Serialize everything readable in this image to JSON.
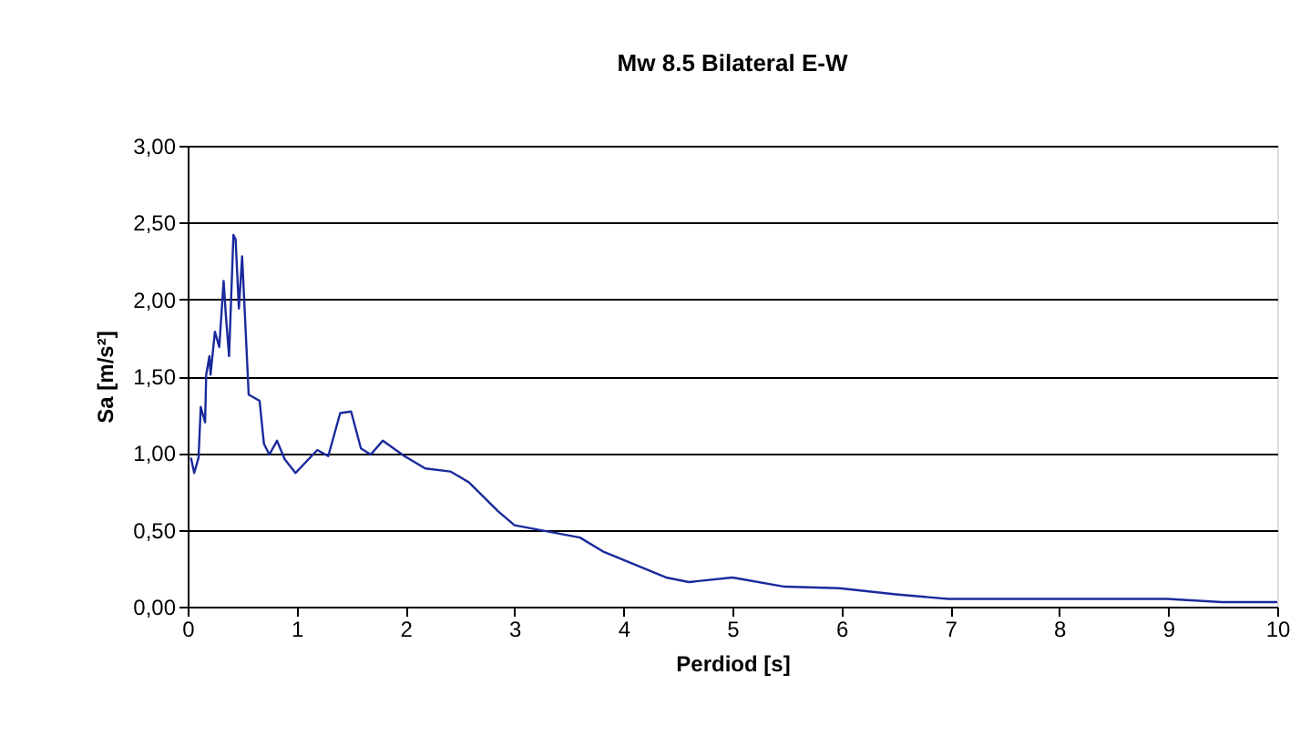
{
  "chart_data": {
    "type": "line",
    "title": "Mw 8.5 Bilateral E-W",
    "xlabel": "Perdiod [s]",
    "ylabel": "Sa [m/s²]",
    "x": [
      0.03,
      0.06,
      0.1,
      0.12,
      0.16,
      0.17,
      0.2,
      0.21,
      0.25,
      0.29,
      0.33,
      0.35,
      0.38,
      0.42,
      0.44,
      0.47,
      0.5,
      0.56,
      0.66,
      0.7,
      0.75,
      0.82,
      0.89,
      0.99,
      1.19,
      1.29,
      1.4,
      1.5,
      1.59,
      1.68,
      1.79,
      1.99,
      2.18,
      2.41,
      2.58,
      2.85,
      3.0,
      3.6,
      3.81,
      4.39,
      4.6,
      5.0,
      5.48,
      5.98,
      6.5,
      6.98,
      8.99,
      9.49,
      10.0
    ],
    "series": [
      {
        "color": "#1a2a9c",
        "values": [
          0.97,
          0.87,
          0.97,
          1.3,
          1.2,
          1.51,
          1.63,
          1.51,
          1.79,
          1.69,
          2.12,
          1.9,
          1.63,
          2.42,
          2.39,
          1.94,
          2.28,
          1.38,
          1.34,
          1.06,
          0.99,
          1.08,
          0.96,
          0.87,
          1.02,
          0.98,
          1.26,
          1.27,
          1.03,
          0.99,
          1.08,
          0.98,
          0.9,
          0.88,
          0.81,
          0.62,
          0.53,
          0.45,
          0.36,
          0.19,
          0.16,
          0.19,
          0.13,
          0.12,
          0.08,
          0.05,
          0.05,
          0.03,
          0.03
        ]
      }
    ],
    "xlim": [
      0,
      10
    ],
    "xticks": [
      0,
      1,
      2,
      3,
      4,
      5,
      6,
      7,
      8,
      9,
      10
    ],
    "ylim": [
      0,
      3
    ],
    "yticks": [
      {
        "value": 0,
        "label": "0,00"
      },
      {
        "value": 0.5,
        "label": "0,50"
      },
      {
        "value": 1,
        "label": "1,00"
      },
      {
        "value": 1.5,
        "label": "1,50"
      },
      {
        "value": 2,
        "label": "2,00"
      },
      {
        "value": 2.5,
        "label": "2,50"
      },
      {
        "value": 3,
        "label": "3,00"
      }
    ],
    "grid": "y",
    "marker": "none",
    "line_style": "solid"
  }
}
